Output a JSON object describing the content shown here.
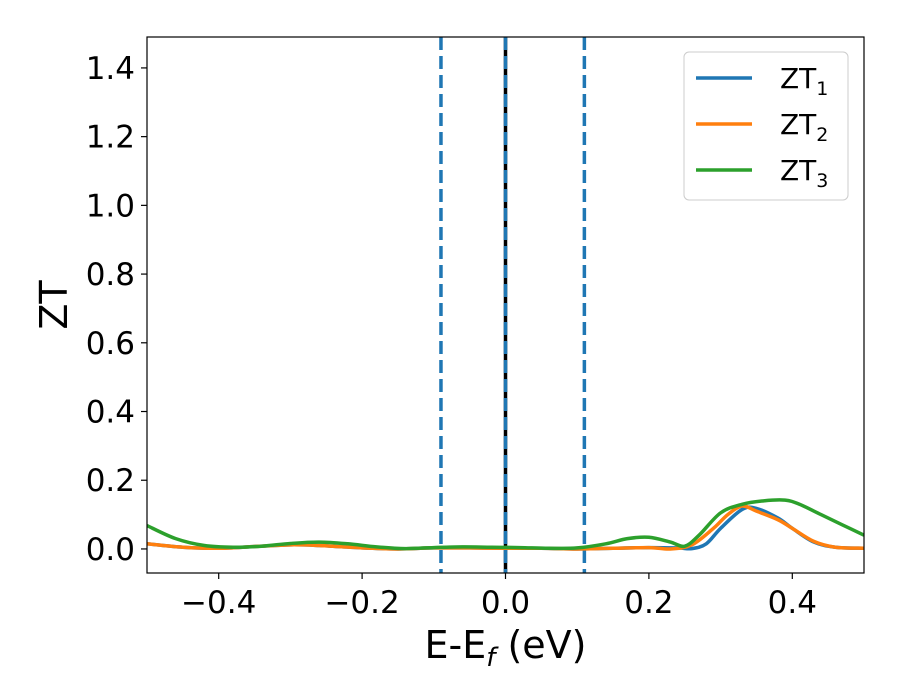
{
  "chart_data": {
    "type": "line",
    "xlabel": "E-E",
    "xlabel_sub": "f",
    "xlabel_suffix": " (eV)",
    "ylabel": "ZT",
    "xlim": [
      -0.5,
      0.5
    ],
    "ylim": [
      -0.07,
      1.49
    ],
    "xticks": [
      -0.4,
      -0.2,
      0.0,
      0.2,
      0.4
    ],
    "xtick_labels": [
      "−0.4",
      "−0.2",
      "0.0",
      "0.2",
      "0.4"
    ],
    "yticks": [
      0.0,
      0.2,
      0.4,
      0.6,
      0.8,
      1.0,
      1.2,
      1.4
    ],
    "ytick_labels": [
      "0.0",
      "0.2",
      "0.4",
      "0.6",
      "0.8",
      "1.0",
      "1.2",
      "1.4"
    ],
    "grid": false,
    "legend_position": "top-right",
    "vlines": [
      {
        "x": -0.09,
        "style": "dashed",
        "color": "#1f77b4"
      },
      {
        "x": 0.0,
        "style": "solid",
        "color": "#000000"
      },
      {
        "x": 0.0,
        "style": "dashed",
        "color": "#1f77b4"
      },
      {
        "x": 0.11,
        "style": "dashed",
        "color": "#1f77b4"
      }
    ],
    "series": [
      {
        "name": "ZT",
        "name_sub": "1",
        "color": "#1f77b4",
        "x": [
          -0.5,
          -0.45,
          -0.4,
          -0.35,
          -0.3,
          -0.26,
          -0.2,
          -0.15,
          -0.1,
          -0.05,
          0.0,
          0.05,
          0.1,
          0.15,
          0.2,
          0.24,
          0.26,
          0.28,
          0.3,
          0.33,
          0.35,
          0.38,
          0.4,
          0.43,
          0.46,
          0.5
        ],
        "y": [
          0.015,
          0.005,
          0.002,
          0.007,
          0.012,
          0.01,
          0.003,
          0.0,
          0.003,
          0.003,
          0.002,
          0.002,
          0.0,
          0.002,
          0.004,
          0.003,
          0.001,
          0.015,
          0.06,
          0.115,
          0.118,
          0.09,
          0.06,
          0.02,
          0.005,
          0.002
        ]
      },
      {
        "name": "ZT",
        "name_sub": "2",
        "color": "#ff7f0e",
        "x": [
          -0.5,
          -0.45,
          -0.4,
          -0.35,
          -0.3,
          -0.26,
          -0.2,
          -0.15,
          -0.1,
          -0.05,
          0.0,
          0.05,
          0.1,
          0.15,
          0.2,
          0.23,
          0.26,
          0.29,
          0.31,
          0.33,
          0.35,
          0.38,
          0.4,
          0.43,
          0.46,
          0.5
        ],
        "y": [
          0.015,
          0.005,
          0.002,
          0.007,
          0.012,
          0.01,
          0.003,
          0.0,
          0.003,
          0.003,
          0.002,
          0.002,
          0.0,
          0.002,
          0.004,
          0.0,
          0.012,
          0.06,
          0.1,
          0.125,
          0.11,
          0.085,
          0.06,
          0.022,
          0.005,
          0.002
        ]
      },
      {
        "name": "ZT",
        "name_sub": "3",
        "color": "#2ca02c",
        "x": [
          -0.5,
          -0.46,
          -0.42,
          -0.38,
          -0.34,
          -0.3,
          -0.26,
          -0.22,
          -0.18,
          -0.14,
          -0.1,
          -0.06,
          -0.02,
          0.02,
          0.06,
          0.1,
          0.14,
          0.17,
          0.2,
          0.23,
          0.25,
          0.27,
          0.3,
          0.33,
          0.36,
          0.39,
          0.41,
          0.44,
          0.47,
          0.5
        ],
        "y": [
          0.068,
          0.03,
          0.01,
          0.005,
          0.008,
          0.016,
          0.02,
          0.015,
          0.006,
          0.001,
          0.004,
          0.006,
          0.005,
          0.004,
          0.002,
          0.003,
          0.015,
          0.03,
          0.034,
          0.02,
          0.008,
          0.04,
          0.105,
          0.13,
          0.14,
          0.142,
          0.13,
          0.1,
          0.07,
          0.04
        ]
      }
    ]
  }
}
